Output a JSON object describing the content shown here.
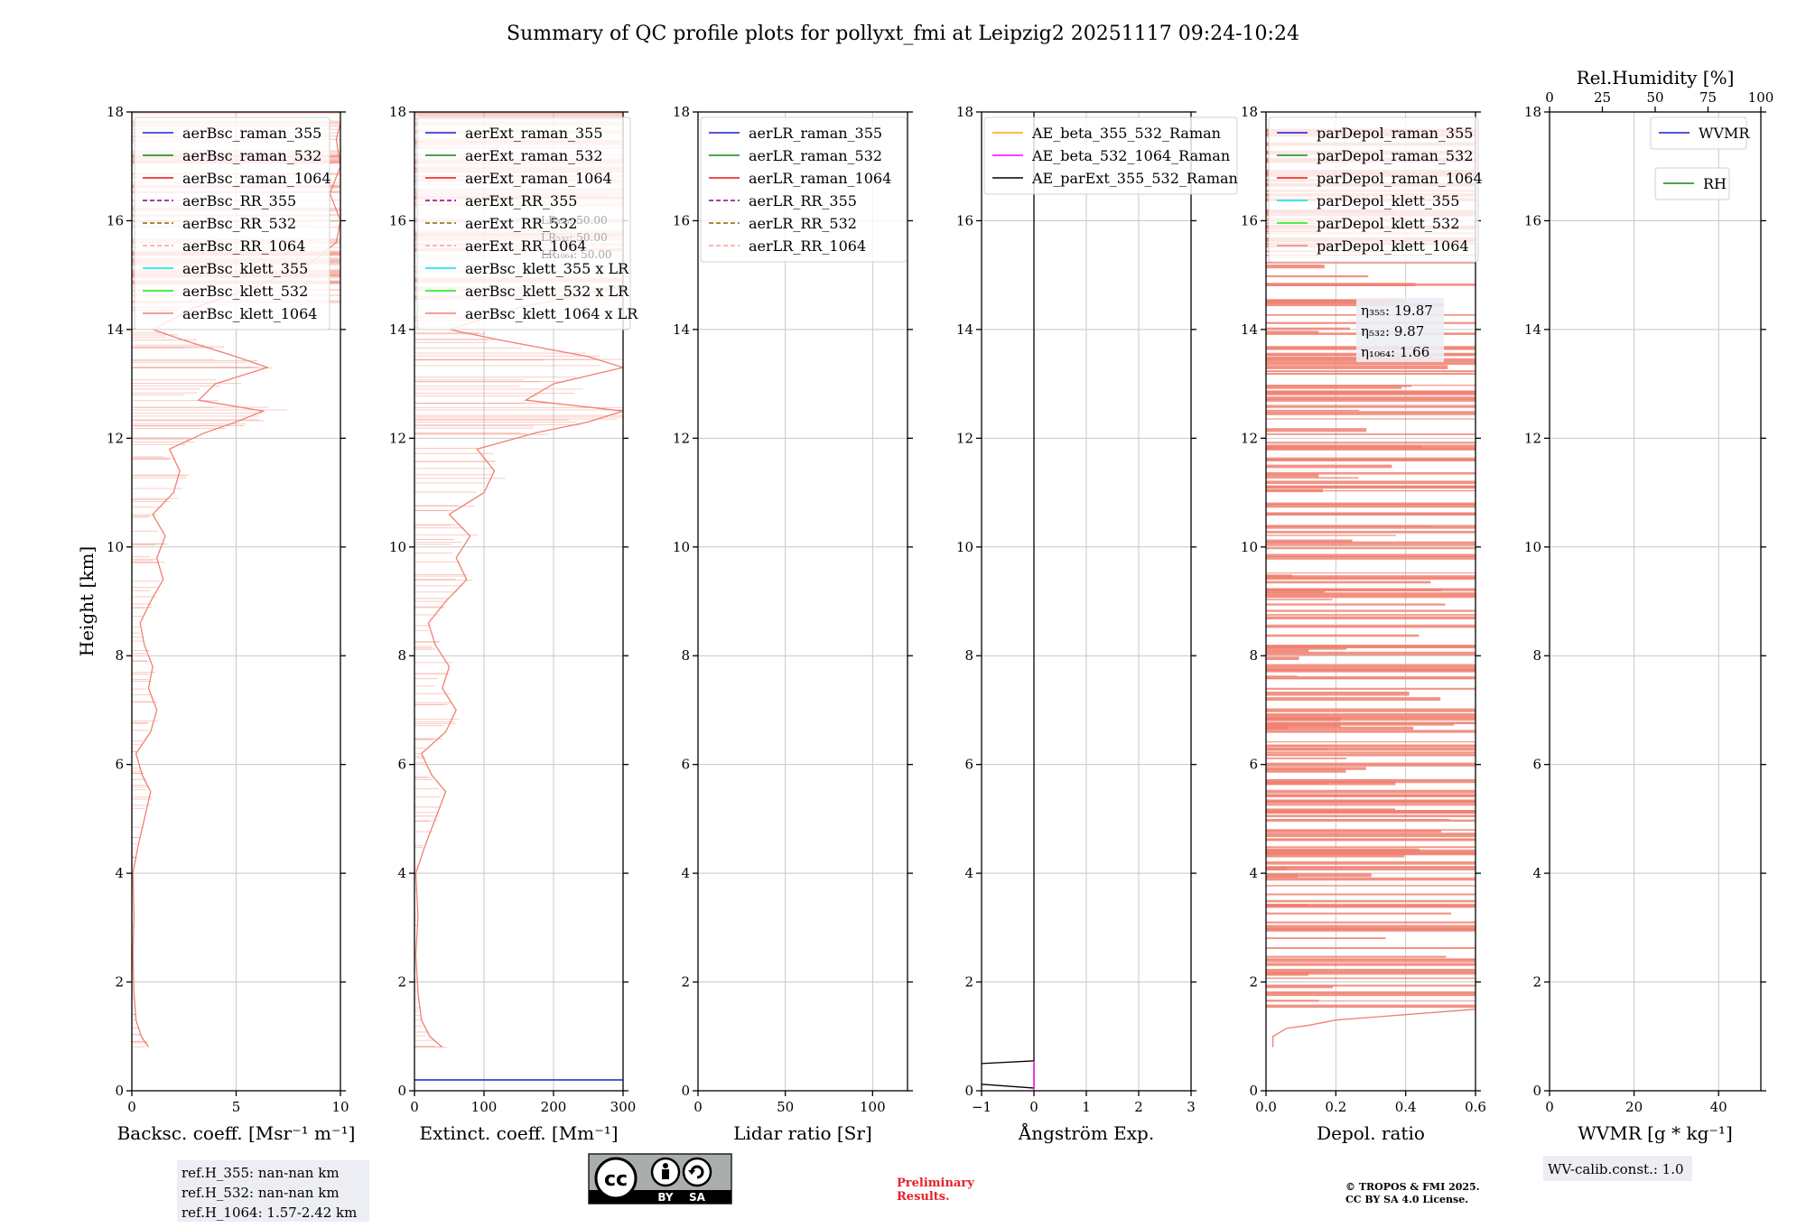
{
  "title": "Summary of QC profile plots for pollyxt_fmi at Leipzig2 20251117 09:24-10:24",
  "colors": {
    "c355": "#1f1fcf",
    "c532": "#118811",
    "c1064": "#ee1111",
    "rr355": "#880088",
    "rr532": "#886600",
    "rr1064": "#f5a29a",
    "k355": "#00e5e5",
    "k532": "#11ee11",
    "k1064": "#f08070",
    "ae1": "#ffa500",
    "ae2": "#ff00ff",
    "ae3": "#000000",
    "grid": "#c8c8c8",
    "infobox": "#eceef4"
  },
  "chart_data": [
    {
      "type": "line",
      "panel": "backscatter",
      "ylabel": "Height [km]",
      "xlabel": "Backsc. coeff. [Msr⁻¹ m⁻¹]",
      "xlim": [
        0,
        10
      ],
      "ylim": [
        0,
        18
      ],
      "xticks": [
        "0",
        "5",
        "10"
      ],
      "yticks": [
        "0",
        "2",
        "4",
        "6",
        "8",
        "10",
        "12",
        "14",
        "16",
        "18"
      ],
      "legend": [
        "aerBsc_raman_355",
        "aerBsc_raman_532",
        "aerBsc_raman_1064",
        "aerBsc_RR_355",
        "aerBsc_RR_532",
        "aerBsc_RR_1064",
        "aerBsc_klett_355",
        "aerBsc_klett_532",
        "aerBsc_klett_1064"
      ],
      "series": [
        {
          "name": "aerBsc_klett_1064",
          "points": [
            [
              0.8,
              0.8
            ],
            [
              0.45,
              1.0
            ],
            [
              0.2,
              1.3
            ],
            [
              0.1,
              1.8
            ],
            [
              0.05,
              2.5
            ],
            [
              0.1,
              3.2
            ],
            [
              0.05,
              4.0
            ],
            [
              0.3,
              4.5
            ],
            [
              0.6,
              5.0
            ],
            [
              0.9,
              5.5
            ],
            [
              0.5,
              5.8
            ],
            [
              0.2,
              6.2
            ],
            [
              0.9,
              6.6
            ],
            [
              1.2,
              7.0
            ],
            [
              0.8,
              7.4
            ],
            [
              1.0,
              7.8
            ],
            [
              0.6,
              8.2
            ],
            [
              0.4,
              8.6
            ],
            [
              0.9,
              9.0
            ],
            [
              1.5,
              9.4
            ],
            [
              1.2,
              9.8
            ],
            [
              1.6,
              10.2
            ],
            [
              1.0,
              10.6
            ],
            [
              2.0,
              11.0
            ],
            [
              2.3,
              11.4
            ],
            [
              1.8,
              11.8
            ],
            [
              3.5,
              12.1
            ],
            [
              5.0,
              12.3
            ],
            [
              6.3,
              12.5
            ],
            [
              3.2,
              12.7
            ],
            [
              4.0,
              13.0
            ],
            [
              6.5,
              13.3
            ],
            [
              5.0,
              13.5
            ],
            [
              2.5,
              13.8
            ],
            [
              1.0,
              14.0
            ],
            [
              3.0,
              14.4
            ],
            [
              6.0,
              14.8
            ],
            [
              8.5,
              15.2
            ],
            [
              9.8,
              15.6
            ],
            [
              10,
              16.0
            ],
            [
              9.5,
              16.5
            ],
            [
              10,
              17.0
            ],
            [
              9.8,
              17.5
            ],
            [
              10,
              17.8
            ]
          ]
        }
      ],
      "info": [
        "ref.H_355: nan-nan km",
        "ref.H_532: nan-nan km",
        "ref.H_1064: 1.57-2.42 km"
      ]
    },
    {
      "type": "line",
      "panel": "extinction",
      "xlabel": "Extinct. coeff. [Mm⁻¹]",
      "xlim": [
        0,
        300
      ],
      "ylim": [
        0,
        18
      ],
      "xticks": [
        "0",
        "100",
        "200",
        "300"
      ],
      "yticks": [
        "0",
        "2",
        "4",
        "6",
        "8",
        "10",
        "12",
        "14",
        "16",
        "18"
      ],
      "legend": [
        "aerExt_raman_355",
        "aerExt_raman_532",
        "aerExt_raman_1064",
        "aerExt_RR_355",
        "aerExt_RR_532",
        "aerExt_RR_1064",
        "aerBsc_klett_355 x LR",
        "aerBsc_klett_532 x LR",
        "aerBsc_klett_1064 x LR"
      ],
      "lr_labels": [
        "LR₃₅₅: 50.00",
        "LR₅₃₂: 50.00",
        "LR₁₀₆₄: 50.00"
      ],
      "series": [
        {
          "name": "aerExt_raman_355",
          "points": [
            [
              0,
              0.2
            ],
            [
              300,
              0.2
            ]
          ]
        },
        {
          "name": "aerBsc_klett_1064 x LR",
          "points": [
            [
              40,
              0.8
            ],
            [
              22,
              1.0
            ],
            [
              10,
              1.3
            ],
            [
              5,
              1.8
            ],
            [
              2,
              2.5
            ],
            [
              5,
              3.2
            ],
            [
              2,
              4.0
            ],
            [
              15,
              4.5
            ],
            [
              30,
              5.0
            ],
            [
              45,
              5.5
            ],
            [
              25,
              5.8
            ],
            [
              10,
              6.2
            ],
            [
              45,
              6.6
            ],
            [
              60,
              7.0
            ],
            [
              40,
              7.4
            ],
            [
              50,
              7.8
            ],
            [
              30,
              8.2
            ],
            [
              20,
              8.6
            ],
            [
              45,
              9.0
            ],
            [
              75,
              9.4
            ],
            [
              60,
              9.8
            ],
            [
              80,
              10.2
            ],
            [
              50,
              10.6
            ],
            [
              100,
              11.0
            ],
            [
              115,
              11.4
            ],
            [
              90,
              11.8
            ],
            [
              175,
              12.1
            ],
            [
              250,
              12.3
            ],
            [
              300,
              12.5
            ],
            [
              160,
              12.7
            ],
            [
              200,
              13.0
            ],
            [
              300,
              13.3
            ],
            [
              250,
              13.5
            ],
            [
              125,
              13.8
            ],
            [
              50,
              14.0
            ],
            [
              150,
              14.4
            ],
            [
              300,
              14.8
            ],
            [
              300,
              15.4
            ],
            [
              300,
              16.2
            ],
            [
              300,
              17.0
            ],
            [
              300,
              17.8
            ]
          ]
        }
      ]
    },
    {
      "type": "line",
      "panel": "lidar_ratio",
      "xlabel": "Lidar ratio [Sr]",
      "xlim": [
        0,
        120
      ],
      "ylim": [
        0,
        18
      ],
      "xticks": [
        "0",
        "50",
        "100"
      ],
      "yticks": [
        "0",
        "2",
        "4",
        "6",
        "8",
        "10",
        "12",
        "14",
        "16",
        "18"
      ],
      "legend": [
        "aerLR_raman_355",
        "aerLR_raman_532",
        "aerLR_raman_1064",
        "aerLR_RR_355",
        "aerLR_RR_532",
        "aerLR_RR_1064"
      ],
      "series": []
    },
    {
      "type": "line",
      "panel": "angstrom",
      "xlabel": "Ångström Exp.",
      "xlim": [
        -1,
        3
      ],
      "ylim": [
        0,
        18
      ],
      "xticks": [
        "−1",
        "0",
        "1",
        "2",
        "3"
      ],
      "yticks": [
        "0",
        "2",
        "4",
        "6",
        "8",
        "10",
        "12",
        "14",
        "16",
        "18"
      ],
      "legend": [
        "AE_beta_355_532_Raman",
        "AE_beta_532_1064_Raman",
        "AE_parExt_355_532_Raman"
      ],
      "series": [
        {
          "name": "AE_parExt_355_532_Raman",
          "points": [
            [
              -1,
              0.12
            ],
            [
              0,
              0.05
            ],
            [
              0,
              0.55
            ],
            [
              -1,
              0.5
            ]
          ]
        },
        {
          "name": "AE_parExt_355_532_Raman",
          "points": [
            [
              0,
              0.55
            ],
            [
              0,
              18
            ]
          ]
        },
        {
          "name": "AE_beta_532_1064_Raman",
          "points": [
            [
              0,
              0.0
            ],
            [
              0,
              0.55
            ]
          ]
        }
      ]
    },
    {
      "type": "line",
      "panel": "depol",
      "xlabel": "Depol. ratio",
      "xlim": [
        0,
        0.6
      ],
      "ylim": [
        0,
        18
      ],
      "xticks": [
        "0.0",
        "0.2",
        "0.4",
        "0.6"
      ],
      "yticks": [
        "0",
        "2",
        "4",
        "6",
        "8",
        "10",
        "12",
        "14",
        "16",
        "18"
      ],
      "legend": [
        "parDepol_raman_355",
        "parDepol_raman_532",
        "parDepol_raman_1064",
        "parDepol_klett_355",
        "parDepol_klett_532",
        "parDepol_klett_1064"
      ],
      "eta": [
        "η₃₅₅: 19.87",
        "η₅₃₂: 9.87",
        "η₁₀₆₄: 1.66"
      ],
      "series": [
        {
          "name": "parDepol_klett_1064",
          "points": [
            [
              0.02,
              0.8
            ],
            [
              0.02,
              1.0
            ],
            [
              0.06,
              1.15
            ],
            [
              0.12,
              1.2
            ],
            [
              0.2,
              1.3
            ],
            [
              0.4,
              1.4
            ],
            [
              0.6,
              1.5
            ]
          ]
        }
      ]
    },
    {
      "type": "line",
      "panel": "water_vapor",
      "xlabel": "WVMR [g * kg⁻¹]",
      "top_xlabel": "Rel.Humidity [%]",
      "xlim": [
        0,
        50
      ],
      "top_xlim": [
        0,
        100
      ],
      "ylim": [
        0,
        18
      ],
      "xticks": [
        "0",
        "20",
        "40"
      ],
      "top_xticks": [
        "0",
        "25",
        "50",
        "75",
        "100"
      ],
      "yticks": [
        "0",
        "2",
        "4",
        "6",
        "8",
        "10",
        "12",
        "14",
        "16",
        "18"
      ],
      "legend": [
        "WVMR"
      ],
      "legend2": [
        "RH"
      ],
      "series": [],
      "info": [
        "WV-calib.const.: 1.0"
      ]
    }
  ],
  "license_badge": {
    "cc": "cc",
    "by": "BY",
    "sa": "SA"
  },
  "preliminary": [
    "Preliminary",
    "Results."
  ],
  "copyright": [
    "© TROPOS & FMI 2025.",
    "CC BY SA 4.0 License."
  ]
}
